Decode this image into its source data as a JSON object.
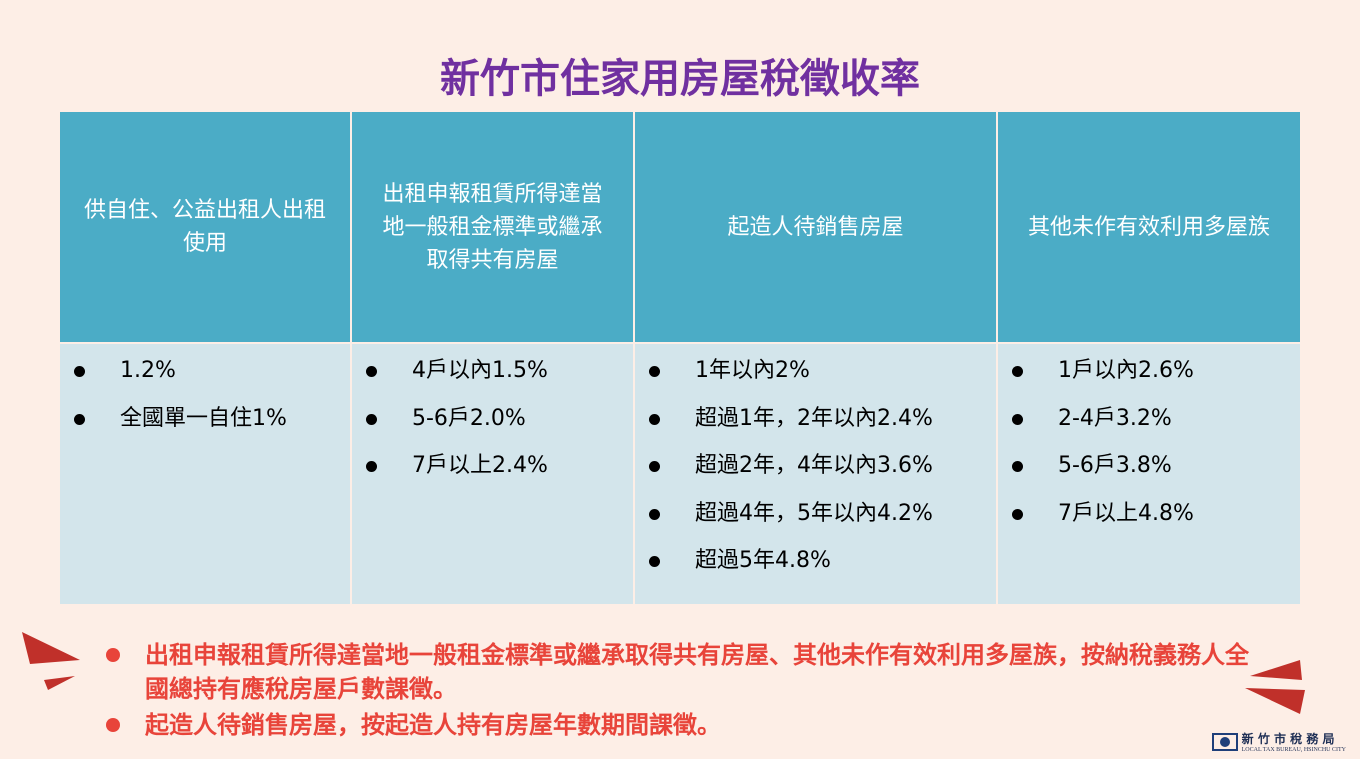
{
  "title": "新竹市住家用房屋稅徵收率",
  "table": {
    "headers": [
      "供自住、公益出租人出租使用",
      "出租申報租賃所得達當地一般租金標準或繼承取得共有房屋",
      "起造人待銷售房屋",
      "其他未作有效利用多屋族"
    ],
    "cells": [
      [
        "1.2%",
        "全國單一自住1%"
      ],
      [
        "4戶以內1.5%",
        "5-6戶2.0%",
        "7戶以上2.4%"
      ],
      [
        "1年以內2%",
        "超過1年，2年以內2.4%",
        "超過2年，4年以內3.6%",
        "超過4年，5年以內4.2%",
        "超過5年4.8%"
      ],
      [
        "1戶以內2.6%",
        "2-4戶3.2%",
        "5-6戶3.8%",
        "7戶以上4.8%"
      ]
    ]
  },
  "notes": [
    "出租申報租賃所得達當地一般租金標準或繼承取得共有房屋、其他未作有效利用多屋族，按納稅義務人全國總持有應稅房屋戶數課徵。",
    "起造人待銷售房屋，按起造人持有房屋年數期間課徵。"
  ],
  "logo": {
    "name": "新 竹 市 稅 務 局",
    "english": "LOCAL TAX BUREAU, HSINCHU CITY"
  }
}
